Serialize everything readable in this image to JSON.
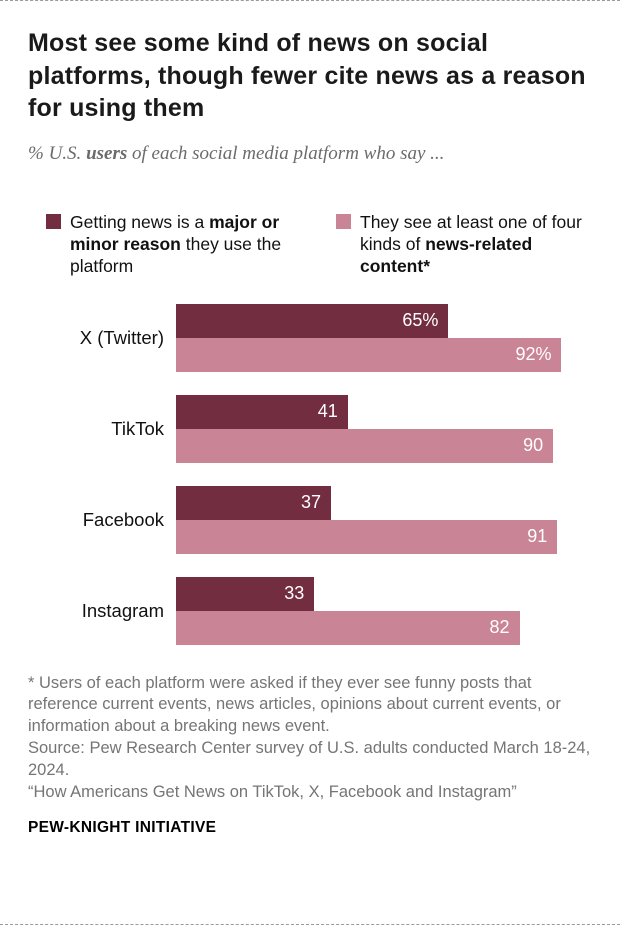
{
  "header": {
    "title": "Most see some kind of news on social platforms, though fewer cite news as a reason for using them",
    "subtitle_pre": "% U.S. ",
    "subtitle_bold": "users",
    "subtitle_post": " of each social media platform who say ..."
  },
  "legend": {
    "reason": {
      "pre": "Getting news is a ",
      "bold": "major or minor reason",
      "post": " they use the platform"
    },
    "content": {
      "pre": "They see at least one of four kinds of ",
      "bold": "news-related content*",
      "post": ""
    }
  },
  "colors": {
    "dark_bar": "#722d41",
    "light_bar": "#c98495"
  },
  "chart_data": {
    "type": "bar",
    "orientation": "horizontal",
    "categories": [
      "X (Twitter)",
      "TikTok",
      "Facebook",
      "Instagram"
    ],
    "series": [
      {
        "name": "Getting news is a major or minor reason they use the platform",
        "color": "#722d41",
        "values": [
          65,
          41,
          37,
          33
        ],
        "labels": [
          "65%",
          "41",
          "37",
          "33"
        ]
      },
      {
        "name": "They see at least one of four kinds of news-related content*",
        "color": "#c98495",
        "values": [
          92,
          90,
          91,
          82
        ],
        "labels": [
          "92%",
          "90",
          "91",
          "82"
        ]
      }
    ],
    "xlim": [
      0,
      100
    ],
    "grid": false,
    "legend_position": "top"
  },
  "footer": {
    "note": "* Users of each platform were asked if they ever see funny posts that reference current events, news articles, opinions about current events, or information about a breaking news event.",
    "source": "Source: Pew Research Center survey of U.S. adults conducted March 18-24, 2024.",
    "report": "“How Americans Get News on TikTok, X, Facebook and Instagram”",
    "brand": "PEW-KNIGHT INITIATIVE"
  }
}
